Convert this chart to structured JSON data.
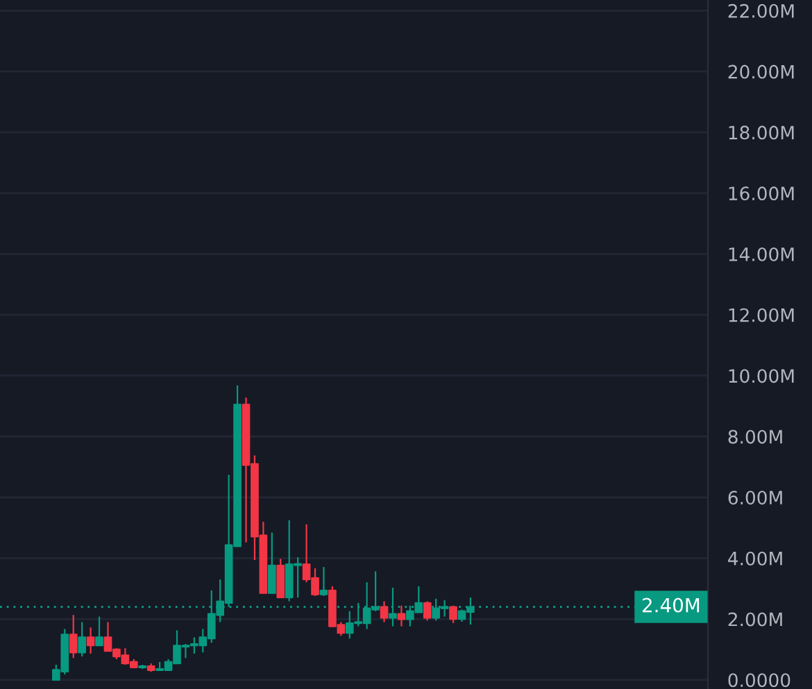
{
  "chart_data": {
    "type": "candlestick",
    "categories": [
      null,
      null,
      null,
      null,
      null,
      null,
      null,
      null,
      null,
      null,
      null,
      null,
      null,
      null,
      null,
      null,
      null,
      null,
      null,
      null,
      null,
      null,
      null,
      null,
      null,
      null,
      null,
      null,
      null,
      null,
      null,
      null,
      null,
      null,
      null,
      null,
      null,
      null,
      null,
      null,
      null,
      null,
      null,
      null,
      null,
      null,
      null,
      null,
      null,
      null,
      null,
      null,
      null,
      null,
      null,
      null,
      null,
      null,
      null,
      null,
      null,
      null,
      null,
      null,
      null,
      null,
      null,
      null,
      null,
      null,
      null,
      null,
      null,
      null,
      null,
      null,
      null,
      null,
      null,
      null,
      null,
      null
    ],
    "ohlc": [
      null,
      null,
      null,
      null,
      null,
      null,
      [
        0.0,
        0.5,
        0.0,
        0.33
      ],
      [
        0.27,
        1.67,
        0.18,
        1.49
      ],
      [
        1.49,
        2.13,
        0.72,
        0.9
      ],
      [
        0.9,
        1.9,
        0.77,
        1.4
      ],
      [
        1.4,
        1.72,
        0.86,
        1.13
      ],
      [
        1.13,
        2.08,
        1.13,
        1.4
      ],
      [
        1.4,
        1.9,
        0.95,
        0.95
      ],
      [
        1.0,
        1.04,
        0.68,
        0.77
      ],
      [
        0.81,
        1.04,
        0.5,
        0.54
      ],
      [
        0.59,
        0.68,
        0.41,
        0.41
      ],
      [
        0.41,
        0.5,
        0.36,
        0.45
      ],
      [
        0.45,
        0.54,
        0.27,
        0.32
      ],
      [
        0.32,
        0.59,
        0.32,
        0.36
      ],
      [
        0.32,
        0.68,
        0.32,
        0.59
      ],
      [
        0.54,
        1.63,
        0.54,
        1.13
      ],
      [
        1.09,
        1.18,
        0.72,
        1.13
      ],
      [
        1.13,
        1.4,
        0.86,
        1.18
      ],
      [
        1.13,
        1.67,
        0.9,
        1.4
      ],
      [
        1.36,
        2.94,
        1.22,
        2.17
      ],
      [
        2.13,
        3.3,
        1.9,
        2.58
      ],
      [
        2.53,
        6.74,
        2.4,
        4.43
      ],
      [
        4.39,
        9.68,
        4.39,
        9.05
      ],
      [
        9.05,
        9.28,
        4.52,
        7.06
      ],
      [
        7.1,
        7.38,
        3.94,
        4.71
      ],
      [
        4.75,
        5.2,
        2.85,
        2.85
      ],
      [
        2.85,
        4.84,
        2.85,
        3.76
      ],
      [
        3.76,
        3.98,
        2.71,
        2.71
      ],
      [
        2.71,
        5.25,
        2.58,
        3.8
      ],
      [
        3.77,
        4.03,
        2.71,
        3.81
      ],
      [
        3.8,
        5.11,
        3.21,
        3.3
      ],
      [
        3.35,
        3.67,
        2.76,
        2.81
      ],
      [
        2.81,
        3.71,
        2.76,
        2.94
      ],
      [
        2.94,
        3.08,
        1.76,
        1.76
      ],
      [
        1.81,
        1.9,
        1.45,
        1.54
      ],
      [
        1.54,
        2.26,
        1.36,
        1.86
      ],
      [
        1.86,
        2.53,
        1.76,
        1.9
      ],
      [
        1.86,
        3.21,
        1.67,
        2.35
      ],
      [
        2.31,
        3.57,
        2.26,
        2.4
      ],
      [
        2.4,
        2.58,
        1.9,
        2.04
      ],
      [
        2.04,
        3.03,
        1.76,
        2.17
      ],
      [
        2.17,
        2.44,
        1.76,
        1.99
      ],
      [
        1.99,
        2.44,
        1.76,
        2.26
      ],
      [
        2.22,
        3.08,
        2.22,
        2.53
      ],
      [
        2.53,
        2.58,
        1.95,
        2.04
      ],
      [
        2.04,
        2.67,
        1.95,
        2.35
      ],
      [
        2.35,
        2.62,
        2.08,
        2.4
      ],
      [
        2.4,
        2.44,
        1.87,
        2.0
      ],
      [
        2.0,
        2.31,
        1.91,
        2.26
      ],
      [
        2.23,
        2.71,
        1.82,
        2.4
      ],
      null,
      null,
      null,
      null,
      null,
      null,
      null,
      null,
      null,
      null,
      null,
      null,
      null,
      null,
      null,
      null,
      null,
      null,
      null,
      null,
      null,
      null,
      null,
      null,
      null,
      null,
      null
    ],
    "colors": [
      null,
      null,
      null,
      null,
      null,
      null,
      "#089981",
      "#089981",
      "#f23645",
      "#089981",
      "#f23645",
      "#089981",
      "#f23645",
      "#f23645",
      "#f23645",
      "#f23645",
      "#089981",
      "#f23645",
      "#089981",
      "#089981",
      "#089981",
      "#089981",
      "#089981",
      "#089981",
      "#089981",
      "#089981",
      "#089981",
      "#089981",
      "#f23645",
      "#f23645",
      "#f23645",
      "#089981",
      "#f23645",
      "#089981",
      "#089981",
      "#f23645",
      "#f23645",
      "#089981",
      "#f23645",
      "#f23645",
      "#089981",
      "#089981",
      "#089981",
      "#089981",
      "#f23645",
      "#089981",
      "#f23645",
      "#089981",
      "#089981",
      "#f23645",
      "#089981",
      "#089981",
      "#f23645",
      "#089981",
      "#089981",
      null,
      null,
      null,
      null,
      null,
      null,
      null,
      null,
      null,
      null,
      null,
      null,
      null,
      null,
      null,
      null,
      null,
      null,
      null,
      null,
      null,
      null,
      null,
      null,
      null,
      null,
      null
    ],
    "ylim": [
      -0.3,
      22.35
    ],
    "yticks": [
      {
        "value": 0,
        "label": "0.0000"
      },
      {
        "value": 2,
        "label": "2.00M"
      },
      {
        "value": 4,
        "label": "4.00M"
      },
      {
        "value": 6,
        "label": "6.00M"
      },
      {
        "value": 8,
        "label": "8.00M"
      },
      {
        "value": 10,
        "label": "10.00M"
      },
      {
        "value": 12,
        "label": "12.00M"
      },
      {
        "value": 14,
        "label": "14.00M"
      },
      {
        "value": 16,
        "label": "16.00M"
      },
      {
        "value": 18,
        "label": "18.00M"
      },
      {
        "value": 20,
        "label": "20.00M"
      },
      {
        "value": 22,
        "label": "22.00M"
      }
    ],
    "grid": "y",
    "tick_labels": "y",
    "ref_lines": [
      {
        "axis": "y",
        "value": 2.4,
        "label": "2.40M",
        "color": "#089981",
        "line_style": "dotted"
      }
    ]
  }
}
